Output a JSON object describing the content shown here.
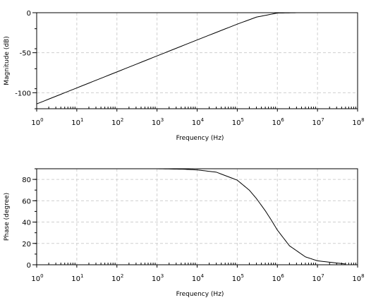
{
  "chart_data": [
    {
      "type": "line",
      "xlabel": "Frequency (Hz)",
      "ylabel": "Magnitude (dB)",
      "xscale": "log",
      "xlim": [
        1,
        100000000
      ],
      "ylim": [
        -120,
        0
      ],
      "grid": true,
      "x_ticks": [
        {
          "base": "10",
          "exp": "0"
        },
        {
          "base": "10",
          "exp": "1"
        },
        {
          "base": "10",
          "exp": "2"
        },
        {
          "base": "10",
          "exp": "3"
        },
        {
          "base": "10",
          "exp": "4"
        },
        {
          "base": "10",
          "exp": "5"
        },
        {
          "base": "10",
          "exp": "6"
        },
        {
          "base": "10",
          "exp": "7"
        },
        {
          "base": "10",
          "exp": "8"
        }
      ],
      "y_ticks": [
        0,
        -50,
        -100
      ],
      "series": [
        {
          "x": [
            1,
            10,
            100,
            1000,
            10000,
            100000,
            300000,
            1000000,
            3000000,
            10000000,
            100000000
          ],
          "y": [
            -114,
            -94,
            -74,
            -54,
            -34,
            -14.3,
            -5.5,
            -0.4,
            -0.05,
            0,
            0
          ]
        }
      ]
    },
    {
      "type": "line",
      "xlabel": "Frequency (Hz)",
      "ylabel": "Phase (degree)",
      "xscale": "log",
      "xlim": [
        1,
        100000000
      ],
      "ylim": [
        0,
        90
      ],
      "grid": true,
      "x_ticks": [
        {
          "base": "10",
          "exp": "0"
        },
        {
          "base": "10",
          "exp": "1"
        },
        {
          "base": "10",
          "exp": "2"
        },
        {
          "base": "10",
          "exp": "3"
        },
        {
          "base": "10",
          "exp": "4"
        },
        {
          "base": "10",
          "exp": "5"
        },
        {
          "base": "10",
          "exp": "6"
        },
        {
          "base": "10",
          "exp": "7"
        },
        {
          "base": "10",
          "exp": "8"
        }
      ],
      "y_ticks": [
        0,
        20,
        40,
        60,
        80
      ],
      "series": [
        {
          "x": [
            1,
            10,
            100,
            1000,
            5000,
            10000,
            30000,
            100000,
            200000,
            300000,
            500000,
            700000,
            1000000,
            2000000,
            5000000,
            10000000,
            50000000
          ],
          "y": [
            90,
            90,
            90,
            90,
            89.5,
            88.9,
            86.8,
            79.3,
            69.9,
            62.1,
            50.6,
            42.1,
            32.5,
            17.8,
            7.4,
            3.7,
            0.7
          ]
        }
      ]
    }
  ]
}
